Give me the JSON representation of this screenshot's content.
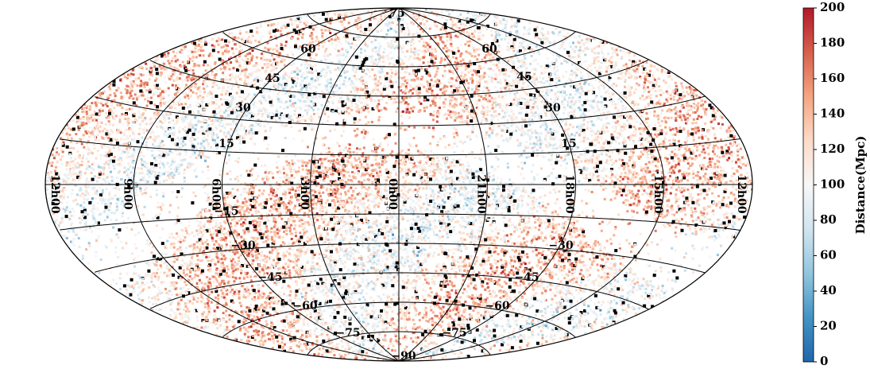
{
  "chart_data": {
    "type": "scatter",
    "projection": "aitoff",
    "grid": true,
    "x_unit": "hours",
    "y_unit": "degrees",
    "ra_ticks": [
      {
        "value": 12,
        "label": "12h00"
      },
      {
        "value": 9,
        "label": "9h00"
      },
      {
        "value": 6,
        "label": "6h00"
      },
      {
        "value": 3,
        "label": "3h00"
      },
      {
        "value": 0,
        "label": "0h00"
      },
      {
        "value": 21,
        "label": "21h00"
      },
      {
        "value": 18,
        "label": "18h00"
      },
      {
        "value": 15,
        "label": "15h00"
      },
      {
        "value": 12,
        "label": "12h00"
      }
    ],
    "dec_ticks": [
      {
        "value": 75,
        "label": "75"
      },
      {
        "value": 60,
        "label": "60"
      },
      {
        "value": 45,
        "label": "45"
      },
      {
        "value": 30,
        "label": "30"
      },
      {
        "value": 15,
        "label": "15"
      },
      {
        "value": -15,
        "label": "−15"
      },
      {
        "value": -30,
        "label": "−30"
      },
      {
        "value": -45,
        "label": "−45"
      },
      {
        "value": -60,
        "label": "−60"
      },
      {
        "value": -75,
        "label": "−75"
      },
      {
        "value": -90,
        "label": "−90"
      }
    ],
    "colorbar": {
      "label": "Distance(Mpc)",
      "min": 0,
      "max": 200,
      "ticks": [
        0,
        20,
        40,
        60,
        80,
        100,
        120,
        140,
        160,
        180,
        200
      ],
      "colormap": "RdBu_r",
      "colors": [
        "#2166ac",
        "#4393c3",
        "#92c5de",
        "#d1e5f0",
        "#f7f7f7",
        "#fddbc7",
        "#f4a582",
        "#d6604d",
        "#b2182b"
      ]
    },
    "overflow_color": "#000000",
    "point_density": "dense, concentrated along supergalactic structures; sparse band along the galactic plane"
  }
}
